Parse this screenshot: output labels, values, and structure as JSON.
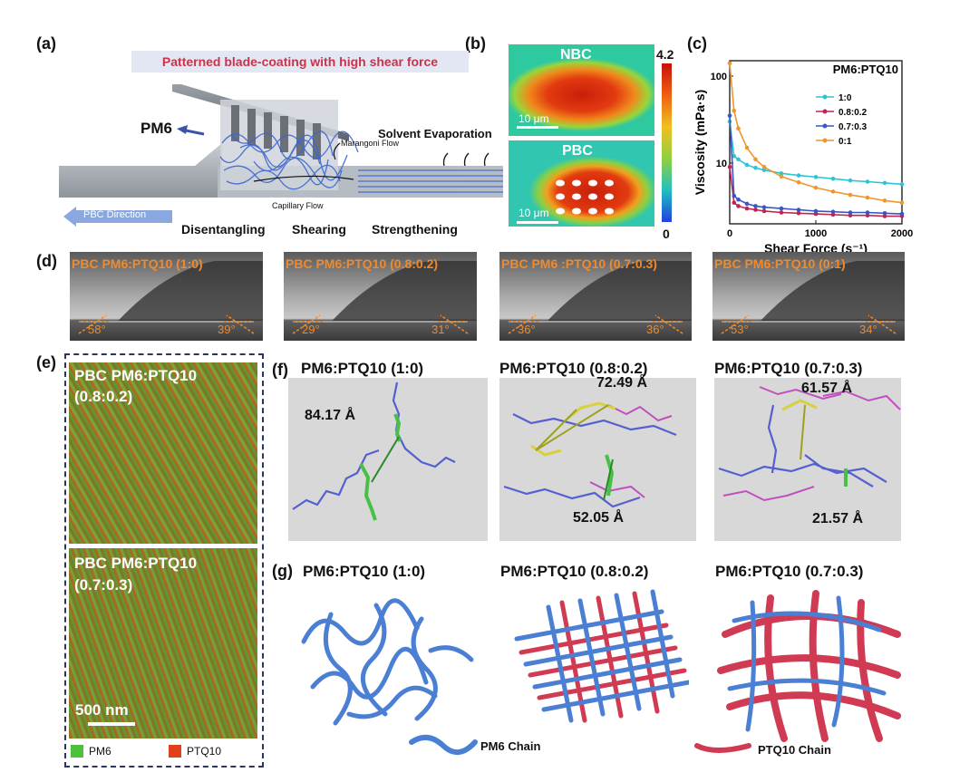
{
  "panels": {
    "a": "(a)",
    "b": "(b)",
    "c": "(c)",
    "d": "(d)",
    "e": "(e)",
    "f": "(f)",
    "g": "(g)"
  },
  "panel_a": {
    "banner": "Patterned blade-coating with high shear force",
    "pm6": "PM6",
    "solvent": "Solvent Evaporation",
    "marangoni": "Marangoni Flow",
    "capillary": "Capillary Flow",
    "direction": "PBC Direction",
    "steps": [
      "Disentangling",
      "Shearing",
      "Strengthening"
    ]
  },
  "panel_b": {
    "top_label": "NBC",
    "bottom_label": "PBC",
    "scale_top": "10 μm",
    "scale_bottom": "10 μm",
    "cbar_max": "4.2",
    "cbar_min": "0"
  },
  "chart_data": {
    "type": "line",
    "title": "PM6:PTQ10",
    "xlabel": "Shear Force (s⁻¹)",
    "ylabel": "Viscosity (mPa·s)",
    "xlim": [
      0,
      2000
    ],
    "ylim": [
      2,
      150
    ],
    "yscale": "log",
    "xticks": [
      "0",
      "1000",
      "2000"
    ],
    "yticks": [
      "10",
      "100"
    ],
    "x": [
      0,
      50,
      100,
      200,
      300,
      400,
      600,
      800,
      1000,
      1200,
      1400,
      1600,
      1800,
      2000
    ],
    "series": [
      {
        "name": "1:0",
        "color": "#2ec4d6",
        "values": [
          30,
          12,
          11,
          9.5,
          8.8,
          8.3,
          7.6,
          7.2,
          6.9,
          6.6,
          6.3,
          6.1,
          5.9,
          5.7
        ]
      },
      {
        "name": "0.8:0.2",
        "color": "#c0244e",
        "values": [
          9,
          3.5,
          3.2,
          3.0,
          2.9,
          2.8,
          2.7,
          2.65,
          2.6,
          2.55,
          2.5,
          2.5,
          2.45,
          2.45
        ]
      },
      {
        "name": "0.7:0.3",
        "color": "#3a55c8",
        "values": [
          35,
          4.2,
          3.8,
          3.4,
          3.2,
          3.1,
          3.0,
          2.9,
          2.8,
          2.75,
          2.7,
          2.7,
          2.65,
          2.6
        ]
      },
      {
        "name": "0:1",
        "color": "#f0962e",
        "values": [
          140,
          40,
          25,
          15,
          11,
          9,
          7,
          6,
          5.2,
          4.7,
          4.3,
          4.0,
          3.7,
          3.5
        ]
      }
    ]
  },
  "panel_d": {
    "items": [
      {
        "title": "PBC PM6:PTQ10 (1:0)",
        "left": "58°",
        "right": "39°"
      },
      {
        "title": "PBC PM6:PTQ10 (0.8:0.2)",
        "left": "29°",
        "right": "31°"
      },
      {
        "title": "PBC PM6 :PTQ10 (0.7:0.3)",
        "left": "36°",
        "right": "36°"
      },
      {
        "title": "PBC PM6:PTQ10 (0:1)",
        "left": "53°",
        "right": "34°"
      }
    ]
  },
  "panel_e": {
    "top_line1": "PBC PM6:PTQ10",
    "top_line2": "(0.8:0.2)",
    "bottom_line1": "PBC PM6:PTQ10",
    "bottom_line2": "(0.7:0.3)",
    "scale": "500 nm",
    "legend_pm6": "PM6",
    "legend_ptq10": "PTQ10",
    "color_pm6": "#4cc23a",
    "color_ptq10": "#e0401a"
  },
  "panel_f": {
    "titles": [
      "PM6:PTQ10 (1:0)",
      "PM6:PTQ10 (0.8:0.2)",
      "PM6:PTQ10 (0.7:0.3)"
    ],
    "d1": "84.17 Å",
    "d2a": "72.49 Å",
    "d2b": "52.05 Å",
    "d3a": "61.57 Å",
    "d3b": "21.57 Å"
  },
  "panel_g": {
    "titles": [
      "PM6:PTQ10 (1:0)",
      "PM6:PTQ10 (0.8:0.2)",
      "PM6:PTQ10 (0.7:0.3)"
    ],
    "legend_pm6": "PM6 Chain",
    "legend_ptq10": "PTQ10 Chain",
    "color_pm6": "#4a7fd4",
    "color_ptq10": "#d03a52"
  }
}
